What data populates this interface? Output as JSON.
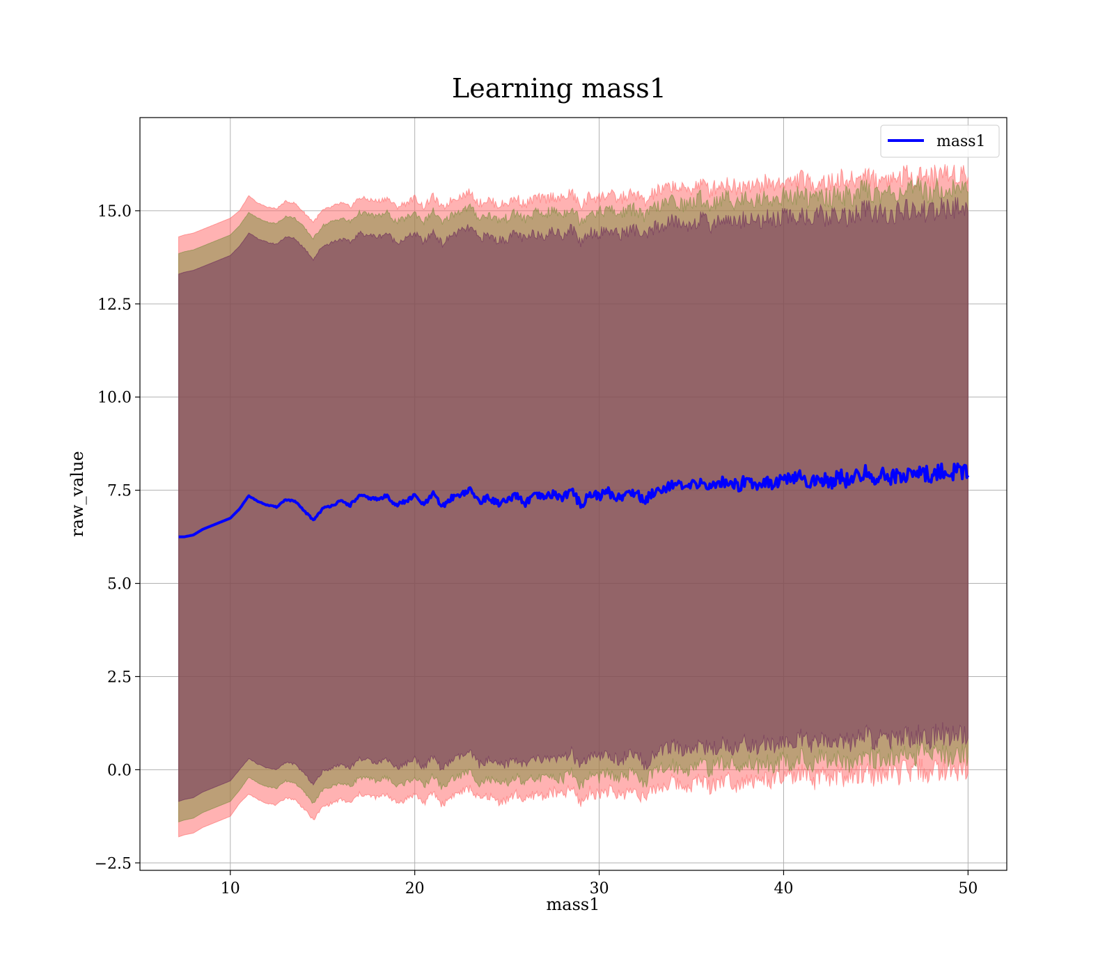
{
  "chart_data": {
    "type": "line",
    "title": "Learning mass1",
    "xlabel": "mass1",
    "ylabel": "raw_value",
    "xlim": [
      5.1,
      52.1
    ],
    "ylim": [
      -2.7,
      17.5
    ],
    "xticks": [
      10,
      20,
      30,
      40,
      50
    ],
    "xtick_labels": [
      "10",
      "20",
      "30",
      "40",
      "50"
    ],
    "yticks": [
      -2.5,
      0.0,
      2.5,
      5.0,
      7.5,
      10.0,
      12.5,
      15.0
    ],
    "ytick_labels": [
      "−2.5",
      "0.0",
      "2.5",
      "5.0",
      "7.5",
      "10.0",
      "12.5",
      "15.0"
    ],
    "grid": true,
    "legend_position": "top-right",
    "x": [
      7.2,
      7.5,
      8.0,
      8.5,
      9.0,
      9.5,
      10.0,
      10.5,
      11.0,
      11.5,
      12.0,
      12.5,
      13.0,
      13.5,
      14.0,
      14.5,
      15.0,
      15.5,
      16.0,
      16.5,
      17.0,
      17.5,
      18.0,
      18.5,
      19.0,
      19.5,
      20.0,
      20.5,
      21.0,
      21.5,
      22.0,
      22.5,
      23.0,
      23.5,
      24.0,
      24.5,
      25.0,
      25.5,
      26.0,
      26.5,
      27.0,
      27.5,
      28.0,
      28.5,
      29.0,
      29.5,
      30.0,
      30.5,
      31.0,
      31.5,
      32.0,
      32.5,
      33.0,
      33.5,
      34.0,
      34.5,
      35.0,
      35.5,
      36.0,
      36.5,
      37.0,
      37.5,
      38.0,
      38.5,
      39.0,
      39.5,
      40.0,
      40.5,
      41.0,
      41.5,
      42.0,
      42.5,
      43.0,
      43.5,
      44.0,
      44.5,
      45.0,
      45.5,
      46.0,
      46.5,
      47.0,
      47.5,
      48.0,
      48.5,
      49.0,
      49.5,
      50.0
    ],
    "series": [
      {
        "name": "mass1",
        "color": "#0000ff",
        "values": [
          6.25,
          6.25,
          6.3,
          6.45,
          6.55,
          6.65,
          6.75,
          7.0,
          7.35,
          7.2,
          7.1,
          7.05,
          7.25,
          7.2,
          6.95,
          6.7,
          7.0,
          7.1,
          7.2,
          7.1,
          7.35,
          7.3,
          7.25,
          7.35,
          7.1,
          7.2,
          7.35,
          7.1,
          7.4,
          7.05,
          7.3,
          7.4,
          7.5,
          7.2,
          7.3,
          7.15,
          7.2,
          7.35,
          7.15,
          7.35,
          7.3,
          7.4,
          7.3,
          7.5,
          7.1,
          7.4,
          7.35,
          7.45,
          7.3,
          7.4,
          7.45,
          7.2,
          7.5,
          7.55,
          7.7,
          7.55,
          7.6,
          7.75,
          7.55,
          7.7,
          7.75,
          7.6,
          7.8,
          7.65,
          7.75,
          7.7,
          7.8,
          7.75,
          7.9,
          7.65,
          7.85,
          7.7,
          7.9,
          7.75,
          7.85,
          8.0,
          7.8,
          7.9,
          7.85,
          7.95,
          7.9,
          8.0,
          7.85,
          8.05,
          7.95,
          8.05,
          7.9
        ]
      }
    ],
    "bands": [
      {
        "color": "#ff6666",
        "lower": [
          -1.8,
          -1.75,
          -1.7,
          -1.55,
          -1.45,
          -1.35,
          -1.25,
          -0.9,
          -0.65,
          -0.8,
          -0.9,
          -0.95,
          -0.75,
          -0.8,
          -1.05,
          -1.35,
          -1.0,
          -0.9,
          -0.8,
          -0.9,
          -0.65,
          -0.7,
          -0.75,
          -0.65,
          -0.9,
          -0.8,
          -0.65,
          -0.9,
          -0.6,
          -0.95,
          -0.7,
          -0.6,
          -0.5,
          -0.8,
          -0.7,
          -0.85,
          -0.8,
          -0.65,
          -0.85,
          -0.65,
          -0.7,
          -0.6,
          -0.7,
          -0.5,
          -0.9,
          -0.6,
          -0.65,
          -0.55,
          -0.7,
          -0.6,
          -0.55,
          -0.8,
          -0.5,
          -0.45,
          -0.3,
          -0.45,
          -0.4,
          -0.25,
          -0.45,
          -0.3,
          -0.25,
          -0.4,
          -0.2,
          -0.35,
          -0.25,
          -0.3,
          -0.2,
          -0.25,
          -0.1,
          -0.35,
          -0.15,
          -0.3,
          -0.1,
          -0.25,
          -0.15,
          0.0,
          -0.2,
          -0.1,
          -0.15,
          -0.05,
          -0.1,
          0.0,
          -0.15,
          0.05,
          -0.05,
          0.05,
          -0.1
        ],
        "upper": [
          14.3,
          14.35,
          14.4,
          14.5,
          14.6,
          14.7,
          14.8,
          15.0,
          15.4,
          15.2,
          15.1,
          15.05,
          15.25,
          15.2,
          14.95,
          14.7,
          15.0,
          15.1,
          15.2,
          15.1,
          15.35,
          15.3,
          15.25,
          15.35,
          15.1,
          15.2,
          15.35,
          15.1,
          15.4,
          15.05,
          15.3,
          15.4,
          15.5,
          15.2,
          15.3,
          15.15,
          15.2,
          15.35,
          15.15,
          15.35,
          15.3,
          15.4,
          15.3,
          15.5,
          15.1,
          15.4,
          15.35,
          15.45,
          15.3,
          15.4,
          15.45,
          15.2,
          15.5,
          15.55,
          15.7,
          15.55,
          15.6,
          15.75,
          15.55,
          15.7,
          15.75,
          15.6,
          15.8,
          15.65,
          15.75,
          15.7,
          15.8,
          15.75,
          15.9,
          15.65,
          15.85,
          15.7,
          15.9,
          15.75,
          15.85,
          16.0,
          15.8,
          15.9,
          15.85,
          15.95,
          15.9,
          16.0,
          15.85,
          16.05,
          15.95,
          16.05,
          15.9
        ],
        "opacity": 0.5
      },
      {
        "color": "#7a8c3c",
        "lower": [
          -1.4,
          -1.35,
          -1.3,
          -1.15,
          -1.05,
          -0.95,
          -0.85,
          -0.55,
          -0.2,
          -0.35,
          -0.45,
          -0.5,
          -0.3,
          -0.35,
          -0.6,
          -0.9,
          -0.55,
          -0.45,
          -0.35,
          -0.45,
          -0.2,
          -0.25,
          -0.3,
          -0.2,
          -0.45,
          -0.35,
          -0.2,
          -0.45,
          -0.15,
          -0.5,
          -0.25,
          -0.15,
          -0.05,
          -0.35,
          -0.25,
          -0.4,
          -0.35,
          -0.2,
          -0.4,
          -0.2,
          -0.25,
          -0.15,
          -0.25,
          -0.05,
          -0.45,
          -0.15,
          -0.2,
          -0.1,
          -0.25,
          -0.15,
          -0.1,
          -0.35,
          -0.05,
          0.0,
          0.15,
          0.0,
          0.05,
          0.2,
          0.0,
          0.15,
          0.2,
          0.05,
          0.25,
          0.1,
          0.2,
          0.15,
          0.25,
          0.2,
          0.35,
          0.1,
          0.3,
          0.15,
          0.35,
          0.2,
          0.3,
          0.45,
          0.25,
          0.35,
          0.3,
          0.4,
          0.35,
          0.45,
          0.3,
          0.5,
          0.4,
          0.5,
          0.35
        ],
        "upper": [
          13.85,
          13.9,
          13.95,
          14.05,
          14.15,
          14.25,
          14.35,
          14.6,
          14.95,
          14.8,
          14.7,
          14.65,
          14.85,
          14.8,
          14.55,
          14.25,
          14.6,
          14.7,
          14.8,
          14.7,
          14.95,
          14.9,
          14.85,
          14.95,
          14.7,
          14.8,
          14.95,
          14.7,
          15.0,
          14.65,
          14.9,
          15.0,
          15.1,
          14.8,
          14.9,
          14.75,
          14.8,
          14.95,
          14.75,
          14.95,
          14.9,
          15.0,
          14.9,
          15.1,
          14.7,
          15.0,
          14.95,
          15.05,
          14.9,
          15.0,
          15.05,
          14.8,
          15.1,
          15.15,
          15.3,
          15.15,
          15.2,
          15.35,
          15.15,
          15.3,
          15.35,
          15.2,
          15.4,
          15.25,
          15.35,
          15.3,
          15.4,
          15.35,
          15.5,
          15.25,
          15.45,
          15.3,
          15.5,
          15.35,
          15.45,
          15.6,
          15.4,
          15.5,
          15.45,
          15.55,
          15.5,
          15.6,
          15.45,
          15.65,
          15.55,
          15.65,
          15.5
        ],
        "opacity": 0.5
      },
      {
        "color": "#6a2a5a",
        "lower": [
          -0.85,
          -0.8,
          -0.75,
          -0.6,
          -0.5,
          -0.4,
          -0.3,
          0.0,
          0.3,
          0.15,
          0.05,
          0.0,
          0.2,
          0.15,
          -0.1,
          -0.4,
          -0.05,
          0.05,
          0.15,
          0.05,
          0.3,
          0.25,
          0.2,
          0.3,
          0.05,
          0.15,
          0.3,
          0.05,
          0.35,
          0.0,
          0.25,
          0.35,
          0.45,
          0.15,
          0.25,
          0.1,
          0.15,
          0.3,
          0.1,
          0.3,
          0.25,
          0.35,
          0.25,
          0.45,
          0.05,
          0.35,
          0.3,
          0.4,
          0.25,
          0.35,
          0.4,
          0.15,
          0.45,
          0.5,
          0.65,
          0.5,
          0.55,
          0.7,
          0.5,
          0.65,
          0.7,
          0.55,
          0.75,
          0.6,
          0.7,
          0.65,
          0.75,
          0.7,
          0.85,
          0.6,
          0.8,
          0.65,
          0.85,
          0.7,
          0.8,
          0.95,
          0.75,
          0.85,
          0.8,
          0.9,
          0.85,
          0.95,
          0.8,
          1.0,
          0.9,
          1.0,
          0.85
        ],
        "upper": [
          13.3,
          13.35,
          13.4,
          13.5,
          13.6,
          13.7,
          13.8,
          14.05,
          14.4,
          14.25,
          14.15,
          14.1,
          14.3,
          14.25,
          14.0,
          13.7,
          14.05,
          14.15,
          14.25,
          14.15,
          14.4,
          14.35,
          14.3,
          14.4,
          14.15,
          14.25,
          14.4,
          14.15,
          14.45,
          14.1,
          14.35,
          14.45,
          14.55,
          14.25,
          14.35,
          14.2,
          14.25,
          14.4,
          14.2,
          14.4,
          14.35,
          14.45,
          14.35,
          14.55,
          14.15,
          14.45,
          14.4,
          14.5,
          14.35,
          14.45,
          14.5,
          14.25,
          14.55,
          14.6,
          14.75,
          14.6,
          14.65,
          14.8,
          14.6,
          14.75,
          14.8,
          14.65,
          14.85,
          14.7,
          14.8,
          14.75,
          14.85,
          14.8,
          14.95,
          14.7,
          14.9,
          14.75,
          14.95,
          14.8,
          14.9,
          15.05,
          14.85,
          14.95,
          14.9,
          15.0,
          14.95,
          15.05,
          14.9,
          15.1,
          15.0,
          15.1,
          14.95
        ],
        "opacity": 0.5
      }
    ]
  }
}
